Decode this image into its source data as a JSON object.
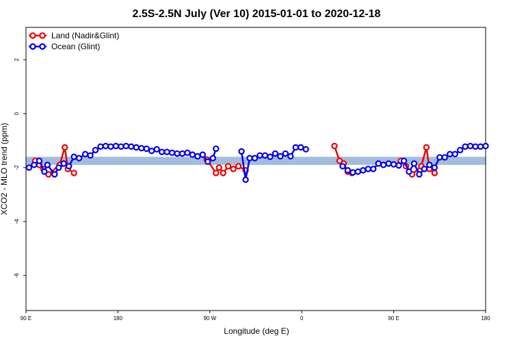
{
  "chart_data": {
    "type": "line",
    "title": "2.5S-2.5N July (Ver 10)   2015-01-01 to 2020-12-18",
    "xlabel": "Longitude (deg E)",
    "ylabel": "XCO2 - MLO trend (ppm)",
    "xlim": [
      90,
      540
    ],
    "ylim": [
      -7.3,
      3.2
    ],
    "x_ticks": [
      {
        "value": 90,
        "label": "90 E"
      },
      {
        "value": 180,
        "label": "180"
      },
      {
        "value": 270,
        "label": "90 W"
      },
      {
        "value": 360,
        "label": "0"
      },
      {
        "value": 450,
        "label": "90 E"
      },
      {
        "value": 540,
        "label": "180"
      }
    ],
    "y_ticks": [
      {
        "value": -6,
        "label": "-6"
      },
      {
        "value": -4,
        "label": "-4"
      },
      {
        "value": -2,
        "label": "-2"
      },
      {
        "value": 0,
        "label": "0"
      },
      {
        "value": 2,
        "label": "2"
      }
    ],
    "bands": [
      {
        "color": "#FFDB7A",
        "segments": [
          [
            [
              91,
              -1.6
            ],
            [
              96,
              -1.6
            ],
            [
              96,
              -1.84
            ],
            [
              91,
              -1.84
            ]
          ],
          [
            [
              120,
              -1.6
            ],
            [
              150,
              -1.6
            ],
            [
              150,
              -1.84
            ],
            [
              120,
              -1.84
            ]
          ],
          [
            [
              258,
              -1.6
            ],
            [
              278,
              -1.6
            ],
            [
              278,
              -1.84
            ],
            [
              258,
              -1.84
            ]
          ],
          [
            [
              307,
              -1.6
            ],
            [
              320,
              -1.6
            ],
            [
              320,
              -1.84
            ],
            [
              307,
              -1.84
            ]
          ],
          [
            [
              368,
              -1.6
            ],
            [
              415,
              -1.6
            ],
            [
              405,
              -1.84
            ],
            [
              368,
              -1.84
            ]
          ],
          [
            [
              490,
              -1.6
            ],
            [
              500,
              -1.6
            ],
            [
              500,
              -1.84
            ],
            [
              490,
              -1.84
            ]
          ]
        ]
      },
      {
        "color": "#A4BCDC",
        "segments": [
          [
            [
              90,
              -1.6
            ],
            [
              540,
              -1.6
            ],
            [
              540,
              -1.9
            ],
            [
              90,
              -1.9
            ]
          ]
        ]
      }
    ],
    "series": [
      {
        "name": "Land (Nadir&Glint)",
        "color": "#EE0000",
        "segments": [
          [
            [
              99,
              -1.75
            ],
            [
              103,
              -1.9
            ],
            [
              107,
              -2.05
            ],
            [
              112,
              -2.25
            ],
            [
              123,
              -1.9
            ],
            [
              128,
              -1.25
            ],
            [
              131,
              -2.05
            ],
            [
              137,
              -2.2
            ]
          ],
          [
            [
              267,
              -1.7
            ],
            [
              276,
              -2.2
            ],
            [
              279,
              -2.0
            ],
            [
              283,
              -2.2
            ],
            [
              288,
              -1.95
            ],
            [
              293,
              -2.05
            ],
            [
              298,
              -1.95
            ],
            [
              305,
              -2.1
            ]
          ],
          [
            [
              392,
              -1.2
            ],
            [
              397,
              -1.75
            ],
            [
              401,
              -1.85
            ],
            [
              405,
              -2.15
            ],
            [
              409,
              -2.2
            ]
          ],
          [
            [
              457,
              -1.75
            ],
            [
              462,
              -1.95
            ],
            [
              468,
              -2.25
            ],
            [
              477,
              -1.95
            ],
            [
              482,
              -1.25
            ],
            [
              485,
              -2.05
            ],
            [
              490,
              -2.2
            ]
          ]
        ]
      },
      {
        "name": "Ocean (Glint)",
        "color": "#0000EE",
        "segments": [
          [
            [
              93,
              -2.0
            ],
            [
              98,
              -1.9
            ],
            [
              103,
              -1.75
            ],
            [
              108,
              -2.15
            ],
            [
              111,
              -1.9
            ],
            [
              118,
              -2.25
            ],
            [
              122,
              -2.0
            ],
            [
              127,
              -1.85
            ],
            [
              132,
              -1.95
            ],
            [
              137,
              -1.6
            ],
            [
              142,
              -1.65
            ],
            [
              148,
              -1.5
            ],
            [
              153,
              -1.55
            ],
            [
              158,
              -1.35
            ],
            [
              163,
              -1.22
            ],
            [
              168,
              -1.2
            ],
            [
              173,
              -1.22
            ],
            [
              178,
              -1.2
            ],
            [
              183,
              -1.22
            ],
            [
              188,
              -1.2
            ],
            [
              193,
              -1.22
            ],
            [
              198,
              -1.25
            ],
            [
              203,
              -1.28
            ],
            [
              208,
              -1.3
            ],
            [
              213,
              -1.38
            ],
            [
              218,
              -1.32
            ],
            [
              223,
              -1.42
            ],
            [
              228,
              -1.42
            ],
            [
              233,
              -1.45
            ],
            [
              238,
              -1.48
            ],
            [
              243,
              -1.48
            ],
            [
              248,
              -1.45
            ],
            [
              253,
              -1.52
            ],
            [
              258,
              -1.58
            ],
            [
              263,
              -1.52
            ],
            [
              268,
              -1.78
            ],
            [
              273,
              -1.65
            ],
            [
              276,
              -1.3
            ]
          ],
          [
            [
              301,
              -1.4
            ],
            [
              305,
              -2.45
            ],
            [
              309,
              -1.65
            ],
            [
              314,
              -1.65
            ],
            [
              319,
              -1.55
            ],
            [
              324,
              -1.55
            ],
            [
              329,
              -1.6
            ],
            [
              334,
              -1.48
            ],
            [
              339,
              -1.58
            ],
            [
              344,
              -1.48
            ],
            [
              349,
              -1.58
            ],
            [
              354,
              -1.25
            ],
            [
              359,
              -1.25
            ],
            [
              364,
              -1.32
            ]
          ],
          [
            [
              400,
              -1.95
            ],
            [
              405,
              -2.1
            ],
            [
              410,
              -2.18
            ],
            [
              415,
              -2.15
            ],
            [
              420,
              -2.1
            ],
            [
              425,
              -2.05
            ],
            [
              430,
              -2.05
            ],
            [
              435,
              -1.85
            ],
            [
              440,
              -1.9
            ],
            [
              445,
              -1.85
            ],
            [
              450,
              -1.88
            ],
            [
              455,
              -1.92
            ],
            [
              460,
              -1.75
            ],
            [
              465,
              -2.15
            ],
            [
              470,
              -1.85
            ],
            [
              475,
              -2.25
            ],
            [
              480,
              -2.05
            ],
            [
              485,
              -1.9
            ],
            [
              490,
              -2.0
            ],
            [
              495,
              -1.62
            ],
            [
              500,
              -1.62
            ],
            [
              505,
              -1.5
            ],
            [
              510,
              -1.5
            ],
            [
              515,
              -1.35
            ],
            [
              520,
              -1.22
            ],
            [
              525,
              -1.2
            ],
            [
              530,
              -1.22
            ],
            [
              535,
              -1.22
            ],
            [
              540,
              -1.2
            ]
          ]
        ]
      }
    ],
    "legend": {
      "placement": "top-left",
      "grid": false
    }
  }
}
